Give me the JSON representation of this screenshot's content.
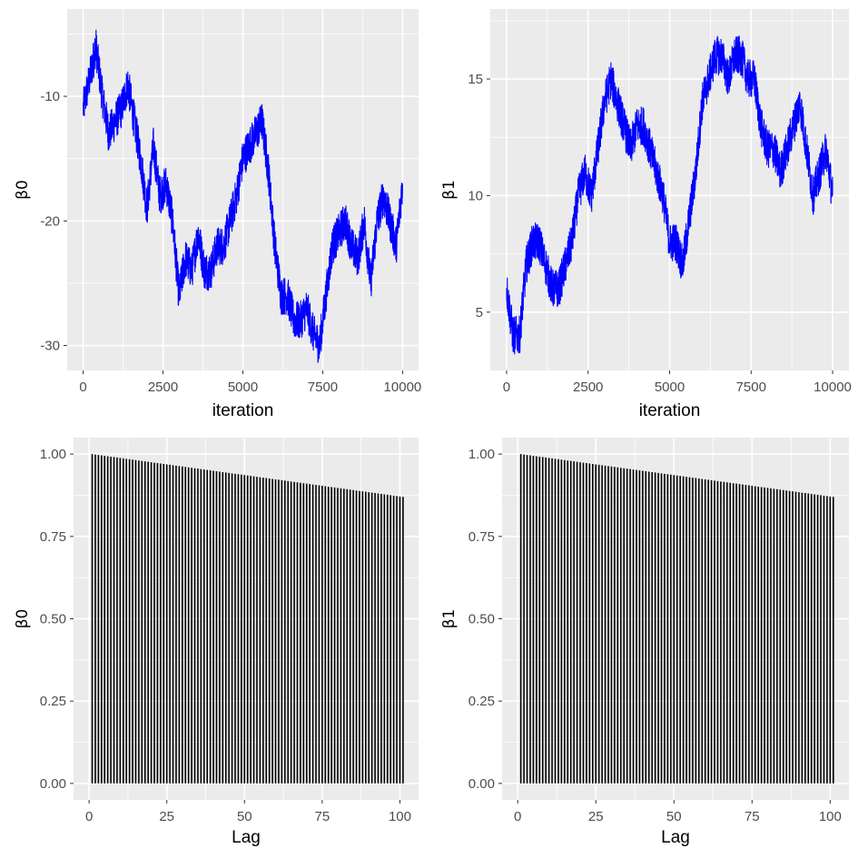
{
  "chart_data": [
    {
      "type": "line",
      "panel": "trace-beta0",
      "xlabel": "iteration",
      "ylabel": "β0",
      "xlim": [
        -500,
        10500
      ],
      "ylim": [
        -32,
        -3
      ],
      "x_ticks": [
        0,
        2500,
        5000,
        7500,
        10000
      ],
      "y_ticks": [
        -10,
        -20,
        -30
      ],
      "series_color": "#0000ff",
      "grid": true,
      "x": [
        0,
        250,
        400,
        600,
        800,
        1000,
        1200,
        1400,
        1600,
        1800,
        2000,
        2200,
        2400,
        2600,
        2800,
        3000,
        3200,
        3400,
        3600,
        3800,
        4000,
        4200,
        4400,
        4600,
        4800,
        5000,
        5200,
        5400,
        5600,
        5800,
        6000,
        6200,
        6400,
        6600,
        6800,
        7000,
        7200,
        7400,
        7600,
        7800,
        8000,
        8200,
        8400,
        8600,
        8800,
        9000,
        9200,
        9400,
        9600,
        9800,
        10000
      ],
      "y": [
        -11,
        -8,
        -6,
        -10,
        -13,
        -12,
        -11,
        -9,
        -12,
        -15,
        -19,
        -14,
        -18,
        -17,
        -20,
        -26,
        -23,
        -24,
        -21,
        -24,
        -24,
        -22,
        -22,
        -20,
        -18,
        -15,
        -14,
        -13,
        -12,
        -16,
        -22,
        -26,
        -26,
        -28,
        -28,
        -27,
        -29,
        -30,
        -26,
        -22,
        -21,
        -20,
        -22,
        -23,
        -20,
        -25,
        -20,
        -18,
        -20,
        -22,
        -17
      ]
    },
    {
      "type": "line",
      "panel": "trace-beta1",
      "xlabel": "iteration",
      "ylabel": "β1",
      "xlim": [
        -500,
        10500
      ],
      "ylim": [
        2.5,
        18
      ],
      "x_ticks": [
        0,
        2500,
        5000,
        7500,
        10000
      ],
      "y_ticks": [
        5,
        10,
        15
      ],
      "series_color": "#0000ff",
      "grid": true,
      "x": [
        0,
        200,
        400,
        600,
        800,
        1000,
        1200,
        1400,
        1600,
        1800,
        2000,
        2200,
        2400,
        2600,
        2800,
        3000,
        3200,
        3400,
        3600,
        3800,
        4000,
        4200,
        4400,
        4600,
        4800,
        5000,
        5200,
        5400,
        5600,
        5800,
        6000,
        6200,
        6400,
        6600,
        6800,
        7000,
        7200,
        7400,
        7600,
        7800,
        8000,
        8200,
        8400,
        8600,
        8800,
        9000,
        9200,
        9400,
        9600,
        9800,
        10000
      ],
      "y": [
        6,
        4,
        4,
        7,
        8,
        8,
        7,
        6,
        6,
        7,
        8,
        10,
        11,
        10,
        12,
        14,
        15,
        14,
        13,
        12,
        13,
        13,
        12,
        11,
        10,
        8,
        8,
        7,
        9,
        11,
        14,
        15,
        16,
        16,
        15,
        16,
        16,
        15,
        15,
        13,
        12,
        12,
        11,
        12,
        13,
        14,
        12,
        10,
        11,
        12,
        10
      ]
    },
    {
      "type": "bar",
      "panel": "acf-beta0",
      "xlabel": "Lag",
      "ylabel": "β0",
      "xlim": [
        -5,
        106
      ],
      "ylim": [
        -0.05,
        1.05
      ],
      "x_ticks": [
        0,
        25,
        50,
        75,
        100
      ],
      "y_ticks": [
        0.0,
        0.25,
        0.5,
        0.75,
        1.0
      ],
      "y_tick_labels": [
        "0.00",
        "0.25",
        "0.50",
        "0.75",
        "1.00"
      ],
      "lags": {
        "start": 1,
        "end": 101
      },
      "values": {
        "first": 1.0,
        "last": 0.87
      },
      "bar_color": "#000000",
      "grid": true
    },
    {
      "type": "bar",
      "panel": "acf-beta1",
      "xlabel": "Lag",
      "ylabel": "β1",
      "xlim": [
        -5,
        106
      ],
      "ylim": [
        -0.05,
        1.05
      ],
      "x_ticks": [
        0,
        25,
        50,
        75,
        100
      ],
      "y_ticks": [
        0.0,
        0.25,
        0.5,
        0.75,
        1.0
      ],
      "y_tick_labels": [
        "0.00",
        "0.25",
        "0.50",
        "0.75",
        "1.00"
      ],
      "lags": {
        "start": 1,
        "end": 101
      },
      "values": {
        "first": 1.0,
        "last": 0.87
      },
      "bar_color": "#000000",
      "grid": true
    }
  ],
  "colors": {
    "panel_background": "#ebebeb",
    "grid": "#ffffff",
    "tick_text": "#4d4d4d"
  }
}
